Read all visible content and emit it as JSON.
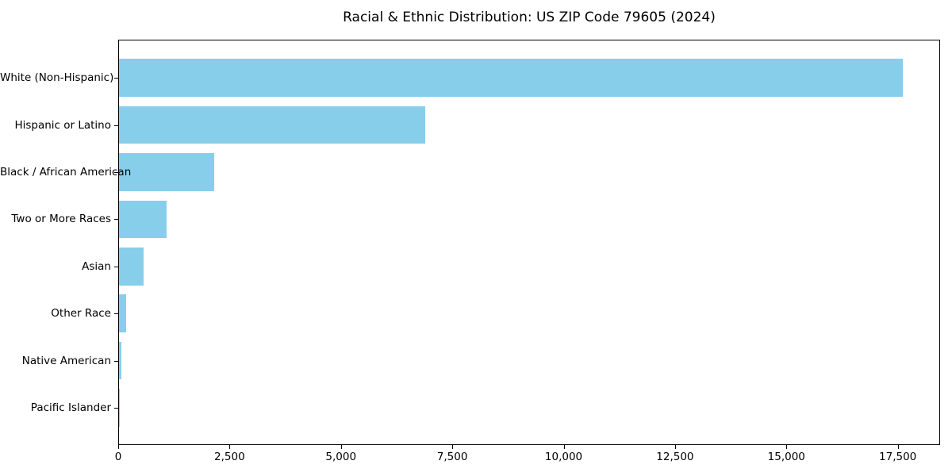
{
  "title": "Racial & Ethnic Distribution: US ZIP Code 79605 (2024)",
  "colors": {
    "bar": "#87CEEB",
    "spine": "#000000",
    "background": "#FFFFFF",
    "text": "#000000"
  },
  "chart_data": {
    "type": "bar",
    "orientation": "horizontal",
    "title": "Racial & Ethnic Distribution: US ZIP Code 79605 (2024)",
    "categories": [
      "White (Non-Hispanic)",
      "Hispanic or Latino",
      "Black / African American",
      "Two or More Races",
      "Asian",
      "Other Race",
      "Native American",
      "Pacific Islander"
    ],
    "values": [
      17590,
      6870,
      2140,
      1070,
      550,
      160,
      50,
      10
    ],
    "xlabel": "",
    "ylabel": "",
    "xlim": [
      0,
      18450
    ],
    "x_ticks": [
      0,
      2500,
      5000,
      7500,
      10000,
      12500,
      15000,
      17500
    ],
    "x_tick_labels": [
      "0",
      "2,500",
      "5,000",
      "7,500",
      "10,000",
      "12,500",
      "15,000",
      "17,500"
    ],
    "grid": false,
    "legend_position": "none",
    "bar_color": "#87CEEB"
  }
}
